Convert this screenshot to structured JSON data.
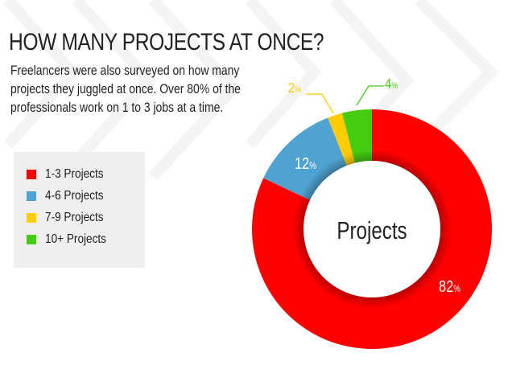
{
  "header": {
    "title": "HOW MANY PROJECTS AT ONCE?"
  },
  "description": {
    "lines": [
      "Freelancers were also surveyed on how many",
      "projects they juggled at once. Over 80% of the",
      "professionals work on 1 to 3 jobs at a time."
    ]
  },
  "legend": {
    "items": [
      {
        "label": "1-3 Projects",
        "color": "#ff0000"
      },
      {
        "label": "4-6 Projects",
        "color": "#4fa3d1"
      },
      {
        "label": "7-9 Projects",
        "color": "#ffcc00"
      },
      {
        "label": "10+ Projects",
        "color": "#44cc11"
      }
    ]
  },
  "chart_data": {
    "type": "pie",
    "variant": "donut",
    "title": "HOW MANY PROJECTS AT ONCE?",
    "center_label": "Projects",
    "categories": [
      "1-3 Projects",
      "4-6 Projects",
      "7-9 Projects",
      "10+ Projects"
    ],
    "values": [
      82,
      12,
      2,
      4
    ],
    "unit": "%",
    "colors": [
      "#ff0000",
      "#4fa3d1",
      "#ffcc00",
      "#44cc11"
    ],
    "data_labels": [
      "82%",
      "12%",
      "2%",
      "4%"
    ],
    "start_angle": "12 o'clock, clockwise",
    "legend_position": "left"
  }
}
